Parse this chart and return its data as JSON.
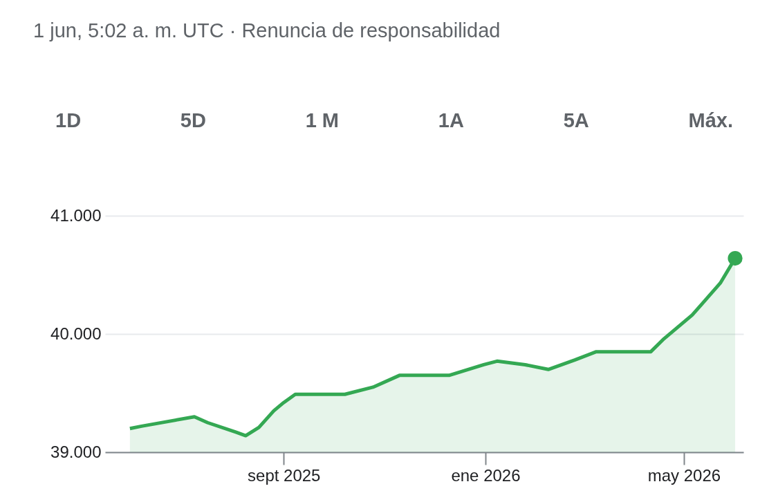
{
  "chart_data": {
    "type": "area",
    "subtitle": "1 jun, 5:02 a. m. UTC · Renuncia de responsabilidad",
    "annotations": [
      "1D",
      "5D",
      "1 M",
      "1A",
      "5A",
      "Máx."
    ],
    "series": [
      {
        "color": "#34a853",
        "x": [
          "2025-05-31",
          "2025-06-07",
          "2025-07-09",
          "2025-07-17",
          "2025-08-03",
          "2025-08-09",
          "2025-08-17",
          "2025-08-26",
          "2025-09-01",
          "2025-09-08",
          "2025-10-08",
          "2025-10-25",
          "2025-11-10",
          "2025-12-10",
          "2025-12-31",
          "2026-01-08",
          "2026-01-25",
          "2026-02-08",
          "2026-02-24",
          "2026-03-09",
          "2026-04-11",
          "2026-04-19",
          "2026-05-06",
          "2026-05-23",
          "2026-06-01"
        ],
        "values": [
          39200,
          39220,
          39300,
          39250,
          39170,
          39140,
          39210,
          39350,
          39420,
          39490,
          39490,
          39550,
          39650,
          39650,
          39740,
          39770,
          39740,
          39700,
          39780,
          39850,
          39850,
          39960,
          40160,
          40430,
          40640
        ]
      },
      {
        "type": "scatter",
        "color": "#34a853",
        "x": [
          "2026-06-01"
        ],
        "values": [
          40640
        ]
      }
    ],
    "xlim": [
      "2025-05-16",
      "2026-06-06"
    ],
    "xticks": [
      {
        "value": "2025-09-01",
        "label": "sept 2025"
      },
      {
        "value": "2026-01-01",
        "label": "ene 2026"
      },
      {
        "value": "2026-05-01",
        "label": "may 2026"
      }
    ],
    "ylim": [
      39000,
      41000
    ],
    "yticks": [
      {
        "value": 39000,
        "label": "39.000"
      },
      {
        "value": 40000,
        "label": "40.000"
      },
      {
        "value": 41000,
        "label": "41.000"
      }
    ],
    "grid": "y",
    "legend": false
  }
}
